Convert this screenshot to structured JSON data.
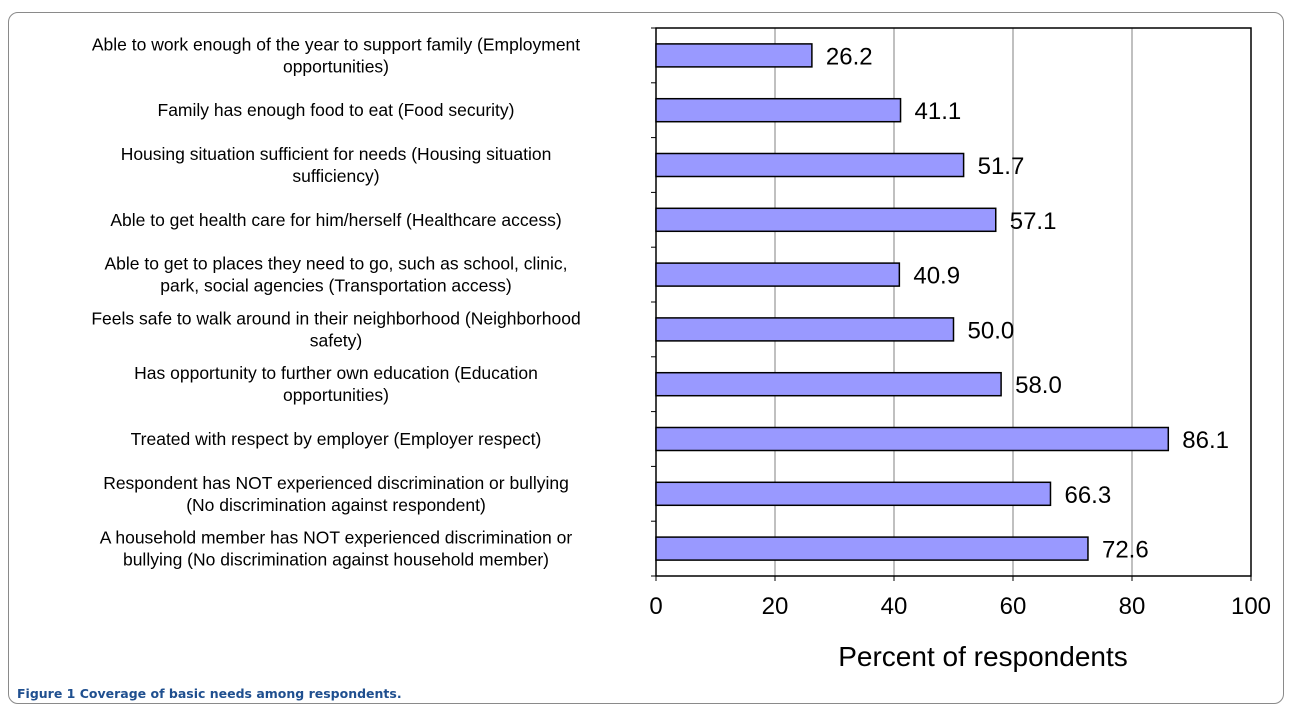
{
  "figure": {
    "caption_label": "Figure 1",
    "caption_text": "Coverage of basic needs among respondents."
  },
  "chart_data": {
    "type": "bar",
    "orientation": "horizontal",
    "categories": [
      [
        "Able to work enough of the year to support family (Employment",
        "opportunities)"
      ],
      [
        "Family has enough food to eat (Food security)"
      ],
      [
        "Housing situation sufficient for needs (Housing situation",
        "sufficiency)"
      ],
      [
        "Able to get health care for him/herself (Healthcare access)"
      ],
      [
        "Able to get to places they need to go, such as school, clinic,",
        "park, social agencies (Transportation access)"
      ],
      [
        "Feels safe to walk around in their neighborhood (Neighborhood",
        "safety)"
      ],
      [
        "Has opportunity to further own education (Education",
        "opportunities)"
      ],
      [
        "Treated with respect by employer (Employer respect)"
      ],
      [
        "Respondent has NOT experienced discrimination or bullying",
        "(No discrimination against respondent)"
      ],
      [
        "A household member has NOT experienced discrimination or",
        "bullying (No discrimination against household member)"
      ]
    ],
    "values": [
      26.2,
      41.1,
      51.7,
      57.1,
      40.9,
      50.0,
      58.0,
      86.1,
      66.3,
      72.6
    ],
    "value_labels": [
      "26.2",
      "41.1",
      "51.7",
      "57.1",
      "40.9",
      "50.0",
      "58.0",
      "86.1",
      "66.3",
      "72.6"
    ],
    "xlabel": "Percent of respondents",
    "xlim": [
      0,
      100
    ],
    "xticks": [
      "0",
      "20",
      "40",
      "60",
      "80",
      "100"
    ],
    "grid": "vertical",
    "colors": {
      "bar_fill": "#9999ff",
      "bar_stroke": "#000000",
      "grid": "#808080"
    }
  }
}
